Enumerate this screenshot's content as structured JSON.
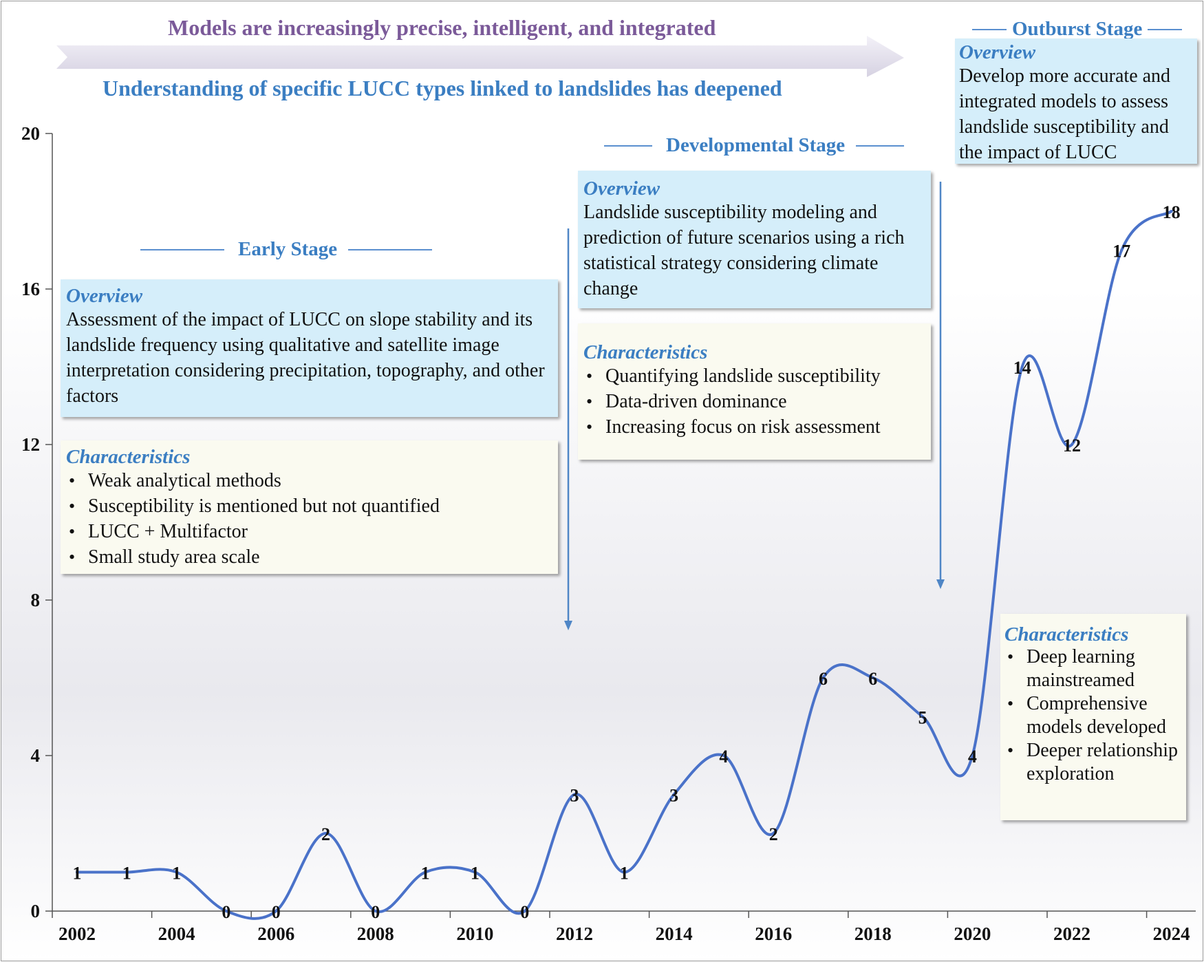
{
  "header": {
    "top_banner": "Models are increasingly precise, intelligent, and integrated",
    "bottom_banner": "Understanding of specific LUCC types linked to landslides has deepened",
    "colors": {
      "top_banner": "#7b5a99",
      "bottom_banner": "#3b7ec2",
      "arrow": "#e4e1ee"
    }
  },
  "stages": {
    "early": {
      "title": "Early Stage",
      "overview_label": "Overview",
      "overview_text": "Assessment of the impact of LUCC on slope stability and its landslide frequency using qualitative and satellite image interpretation considering precipitation, topography, and other factors",
      "characteristics_label": "Characteristics",
      "characteristics": [
        "Weak analytical methods",
        "Susceptibility is mentioned but not quantified",
        "LUCC + Multifactor",
        "Small study area scale"
      ]
    },
    "developmental": {
      "title": "Developmental Stage",
      "overview_label": "Overview",
      "overview_text": "Landslide susceptibility modeling and prediction of future scenarios using a rich statistical strategy considering climate change",
      "characteristics_label": "Characteristics",
      "characteristics": [
        "Quantifying landslide susceptibility",
        "Data-driven dominance",
        "Increasing focus on risk assessment"
      ]
    },
    "outburst": {
      "title": "Outburst Stage",
      "overview_label": "Overview",
      "overview_text": "Develop more accurate and integrated models to assess landslide susceptibility and the impact of LUCC",
      "characteristics_label": "Characteristics",
      "characteristics": [
        "Deep learning mainstreamed",
        "Comprehensive models developed",
        "Deeper relationship exploration"
      ]
    }
  },
  "chart_data": {
    "type": "line",
    "title": "",
    "xlabel": "",
    "ylabel": "",
    "x": [
      2002,
      2003,
      2004,
      2005,
      2006,
      2007,
      2008,
      2009,
      2010,
      2011,
      2012,
      2013,
      2014,
      2015,
      2016,
      2017,
      2018,
      2019,
      2020,
      2021,
      2022,
      2023,
      2024
    ],
    "values": [
      1,
      1,
      1,
      0,
      0,
      2,
      0,
      1,
      1,
      0,
      3,
      1,
      3,
      4,
      2,
      6,
      6,
      5,
      4,
      14,
      12,
      17,
      18
    ],
    "x_tick_labels": [
      "2002",
      "2004",
      "2006",
      "2008",
      "2010",
      "2012",
      "2014",
      "2016",
      "2018",
      "2020",
      "2022",
      "2024"
    ],
    "y_ticks": [
      0,
      4,
      8,
      12,
      16,
      20
    ],
    "ylim": [
      0,
      20
    ],
    "xlim": [
      2001.5,
      2024.5
    ],
    "smooth": true,
    "grid": false,
    "data_labels": true,
    "line_color": "#4a72c9"
  }
}
